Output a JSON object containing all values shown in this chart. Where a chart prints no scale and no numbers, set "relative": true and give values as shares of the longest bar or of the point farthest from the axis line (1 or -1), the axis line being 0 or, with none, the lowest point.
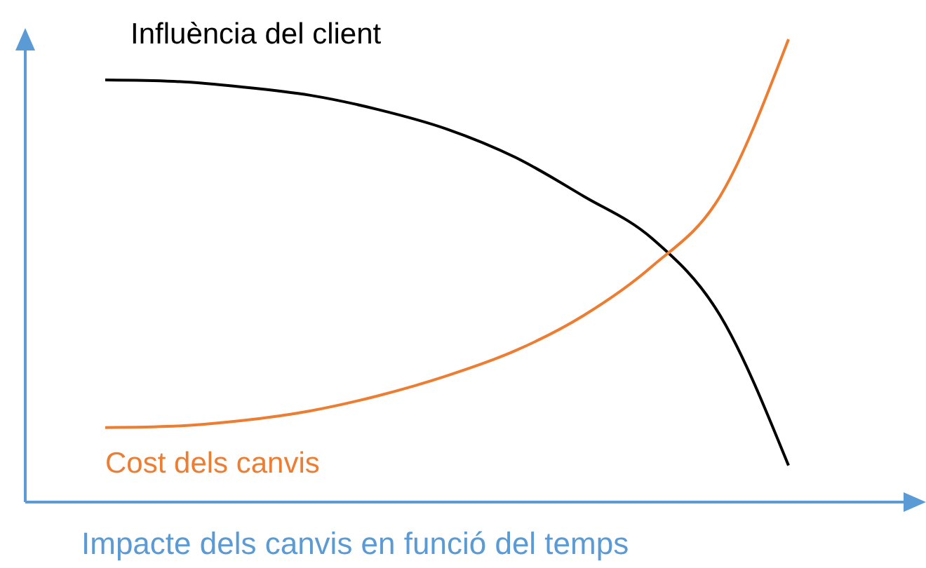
{
  "chart_data": {
    "type": "line",
    "relative": true,
    "xlabel": "Impacte dels canvis en funció del temps",
    "categories": [
      null,
      null,
      null,
      null,
      null,
      null,
      null,
      null,
      null,
      null,
      null
    ],
    "series": [
      {
        "name": "Influència del client",
        "color": "#000000",
        "values": [
          0.912,
          0.909,
          0.897,
          0.879,
          0.848,
          0.806,
          0.745,
          0.661,
          0.57,
          0.403,
          0.079
        ]
      },
      {
        "name": "Cost dels canvis",
        "color": "#ed7d31",
        "values": [
          0.161,
          0.164,
          0.176,
          0.197,
          0.23,
          0.273,
          0.327,
          0.403,
          0.509,
          0.661,
          1
        ]
      }
    ],
    "legend": false,
    "grid": false,
    "marker": "none",
    "line_style": "solid"
  }
}
